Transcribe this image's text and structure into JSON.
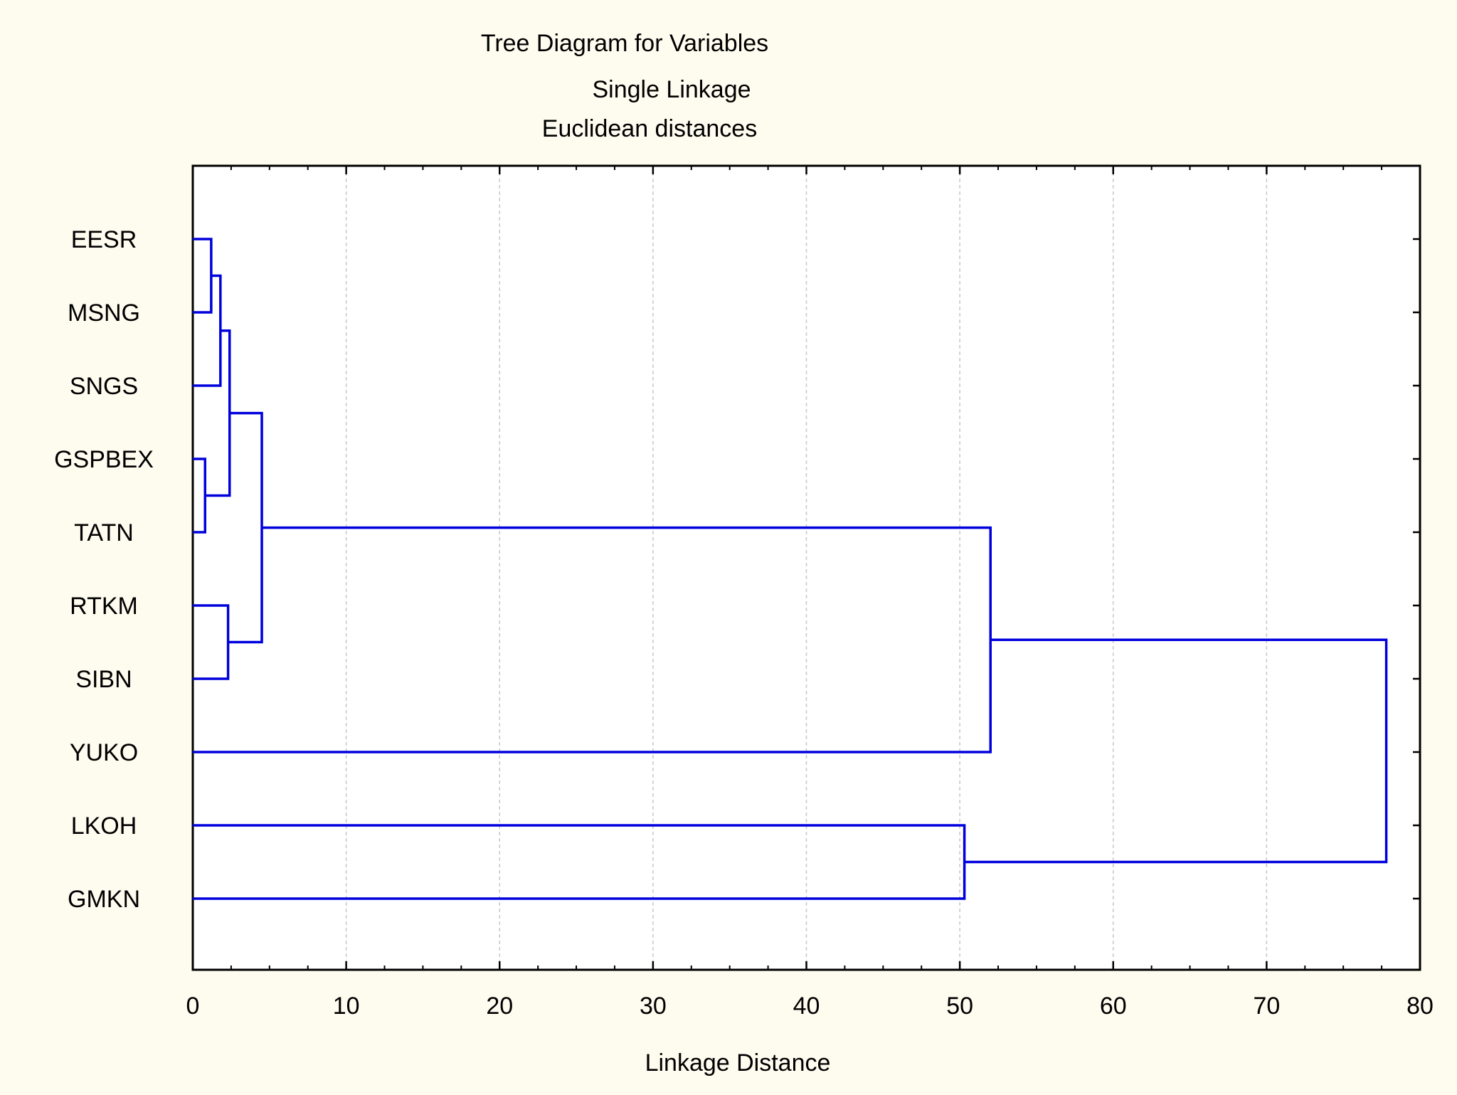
{
  "chart_data": {
    "type": "dendrogram",
    "title": "Tree Diagram for  Variables",
    "subtitle_lines": [
      "Single Linkage",
      "Euclidean distances"
    ],
    "xlabel": "Linkage Distance",
    "xlim": [
      0,
      80
    ],
    "x_ticks": [
      0,
      10,
      20,
      30,
      40,
      50,
      60,
      70,
      80
    ],
    "x_tick_labels": [
      "0",
      "10",
      "20",
      "30",
      "40",
      "50",
      "60",
      "70",
      "80"
    ],
    "grid": "vertical dashed",
    "variables": [
      "EESR",
      "MSNG",
      "SNGS",
      "GSPBEX",
      "TATN",
      "RTKM",
      "SIBN",
      "YUKO",
      "LKOH",
      "GMKN"
    ],
    "merges": [
      {
        "id": "c1",
        "left": "GSPBEX",
        "right": "TATN",
        "distance": 0.8
      },
      {
        "id": "c2",
        "left": "EESR",
        "right": "MSNG",
        "distance": 1.2
      },
      {
        "id": "c3",
        "left": "c2",
        "right": "SNGS",
        "distance": 1.8
      },
      {
        "id": "c4",
        "left": "RTKM",
        "right": "SIBN",
        "distance": 2.3
      },
      {
        "id": "c5",
        "left": "c3",
        "right": "c1",
        "distance": 2.4
      },
      {
        "id": "c6",
        "left": "c5",
        "right": "c4",
        "distance": 4.5
      },
      {
        "id": "c7",
        "left": "LKOH",
        "right": "GMKN",
        "distance": 50.3
      },
      {
        "id": "c8",
        "left": "c6",
        "right": "YUKO",
        "distance": 52.0
      },
      {
        "id": "c9",
        "left": "c8",
        "right": "c7",
        "distance": 77.8
      }
    ],
    "line_color": "#0000dd"
  }
}
